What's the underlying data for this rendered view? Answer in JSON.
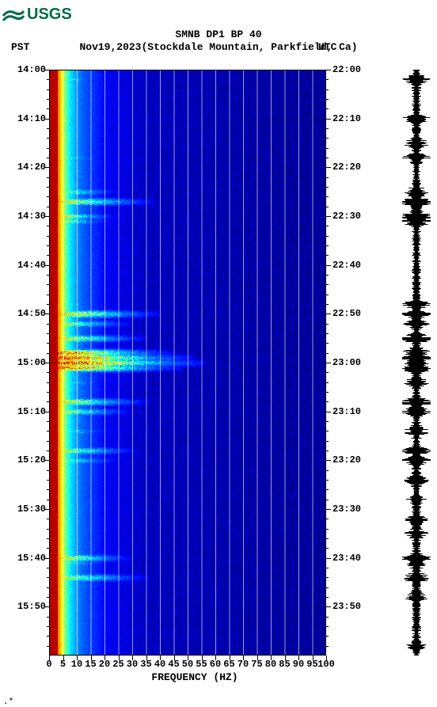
{
  "logo": {
    "text": "USGS",
    "bg": "#006b43",
    "fg": "#ffffff"
  },
  "title": "SMNB DP1 BP 40",
  "subtitle": "Nov19,2023(Stockdale Mountain, Parkfield, Ca)",
  "tz_left": "PST",
  "tz_right": "UTC",
  "xlabel": "FREQUENCY (HZ)",
  "footer": ".*",
  "spectrogram": {
    "type": "spectrogram-heatmap",
    "background_color": "#ffffff",
    "plot_bg": "#0000ff",
    "xlim": [
      0,
      100
    ],
    "ylim_minutes": [
      0,
      120
    ],
    "pst_start": "14:00",
    "utc_start": "22:00",
    "xtick_step": 5,
    "xtick_labels": [
      "0",
      "5",
      "10",
      "15",
      "20",
      "25",
      "30",
      "35",
      "40",
      "45",
      "50",
      "55",
      "60",
      "65",
      "70",
      "75",
      "80",
      "85",
      "90",
      "95",
      "100"
    ],
    "ytick_step_min": 10,
    "ytick_labels_pst": [
      "14:00",
      "14:10",
      "14:20",
      "14:30",
      "14:40",
      "14:50",
      "15:00",
      "15:10",
      "15:20",
      "15:30",
      "15:40",
      "15:50"
    ],
    "ytick_labels_utc": [
      "22:00",
      "22:10",
      "22:20",
      "22:30",
      "22:40",
      "22:50",
      "23:00",
      "23:10",
      "23:20",
      "23:30",
      "23:40",
      "23:50"
    ],
    "minor_ytick_min": 2,
    "gridline_color": "#ffffff",
    "axis_color": "#000000",
    "label_fontsize": 12,
    "colormap_comment": "jet-like: low=blue mid=cyan/green/yellow high=red/darkred",
    "colormap": [
      [
        0.0,
        "#00007f"
      ],
      [
        0.1,
        "#0000ff"
      ],
      [
        0.3,
        "#007fff"
      ],
      [
        0.45,
        "#00ffff"
      ],
      [
        0.55,
        "#7fff7f"
      ],
      [
        0.65,
        "#ffff00"
      ],
      [
        0.8,
        "#ff7f00"
      ],
      [
        0.9,
        "#ff0000"
      ],
      [
        1.0,
        "#7f0000"
      ]
    ],
    "freq_bins": 100,
    "time_bins": 360,
    "base_gradient_comment": "intensity vs frequency for quiet rows",
    "base_gradient": [
      [
        0,
        0.95
      ],
      [
        2,
        0.95
      ],
      [
        3,
        0.82
      ],
      [
        5,
        0.6
      ],
      [
        8,
        0.4
      ],
      [
        12,
        0.25
      ],
      [
        20,
        0.1
      ],
      [
        35,
        0.05
      ],
      [
        100,
        0.02
      ]
    ],
    "events_comment": "broadband bursts [minute, freq_extent_hz, peak_intensity]",
    "events": [
      [
        2,
        18,
        0.65
      ],
      [
        10,
        14,
        0.55
      ],
      [
        15,
        12,
        0.5
      ],
      [
        18,
        20,
        0.6
      ],
      [
        25,
        26,
        0.62
      ],
      [
        27,
        38,
        0.7
      ],
      [
        30,
        24,
        0.72
      ],
      [
        31,
        22,
        0.68
      ],
      [
        48,
        20,
        0.55
      ],
      [
        50,
        40,
        0.75
      ],
      [
        52,
        30,
        0.65
      ],
      [
        55,
        35,
        0.7
      ],
      [
        58,
        44,
        0.85
      ],
      [
        59,
        52,
        0.9
      ],
      [
        60,
        56,
        0.92
      ],
      [
        61,
        48,
        0.85
      ],
      [
        64,
        22,
        0.55
      ],
      [
        68,
        36,
        0.7
      ],
      [
        70,
        30,
        0.65
      ],
      [
        74,
        24,
        0.55
      ],
      [
        78,
        32,
        0.65
      ],
      [
        80,
        26,
        0.58
      ],
      [
        84,
        20,
        0.5
      ],
      [
        88,
        18,
        0.45
      ],
      [
        92,
        16,
        0.45
      ],
      [
        95,
        12,
        0.4
      ],
      [
        100,
        30,
        0.72
      ],
      [
        101,
        22,
        0.6
      ],
      [
        104,
        36,
        0.65
      ],
      [
        108,
        18,
        0.45
      ],
      [
        118,
        10,
        0.4
      ]
    ]
  },
  "seismogram": {
    "type": "waveform-vertical",
    "color": "#000000",
    "bg": "#ffffff",
    "amplitude_base": 0.25,
    "events_ref": "same minutes as spectrogram.events scale amplitude"
  }
}
